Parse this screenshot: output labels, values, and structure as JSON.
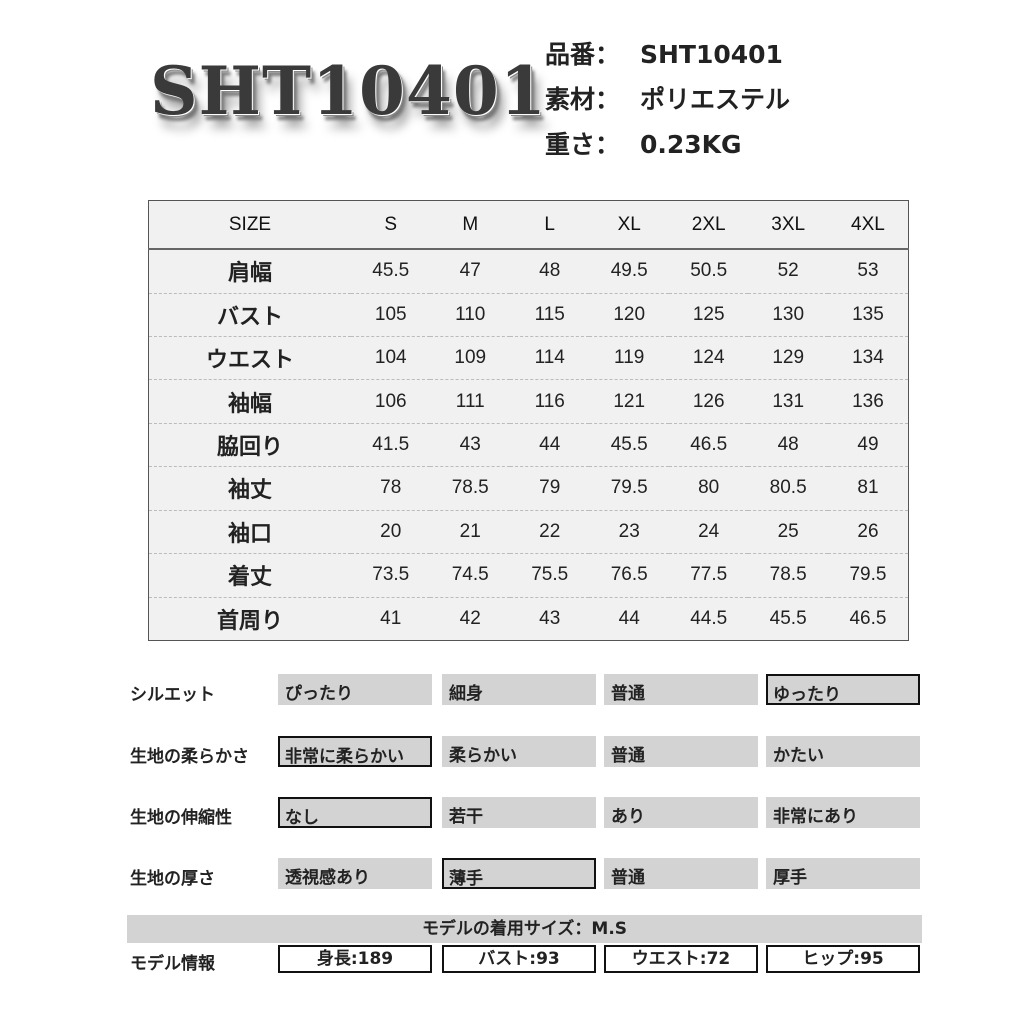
{
  "logo_text": "SHT10401",
  "specs": [
    {
      "key": "品番：",
      "value": "SHT10401"
    },
    {
      "key": "素材：",
      "value": "ポリエステル"
    },
    {
      "key": "重さ：",
      "value": "0.23KG"
    }
  ],
  "size_table": {
    "headers": [
      "SIZE",
      "S",
      "M",
      "L",
      "XL",
      "2XL",
      "3XL",
      "4XL"
    ],
    "rows": [
      {
        "label": "肩幅",
        "values": [
          "45.5",
          "47",
          "48",
          "49.5",
          "50.5",
          "52",
          "53"
        ]
      },
      {
        "label": "バスト",
        "values": [
          "105",
          "110",
          "115",
          "120",
          "125",
          "130",
          "135"
        ]
      },
      {
        "label": "ウエスト",
        "values": [
          "104",
          "109",
          "114",
          "119",
          "124",
          "129",
          "134"
        ]
      },
      {
        "label": "袖幅",
        "values": [
          "106",
          "111",
          "116",
          "121",
          "126",
          "131",
          "136"
        ]
      },
      {
        "label": "脇回り",
        "values": [
          "41.5",
          "43",
          "44",
          "45.5",
          "46.5",
          "48",
          "49"
        ]
      },
      {
        "label": "袖丈",
        "values": [
          "78",
          "78.5",
          "79",
          "79.5",
          "80",
          "80.5",
          "81"
        ]
      },
      {
        "label": "袖口",
        "values": [
          "20",
          "21",
          "22",
          "23",
          "24",
          "25",
          "26"
        ]
      },
      {
        "label": "着丈",
        "values": [
          "73.5",
          "74.5",
          "75.5",
          "76.5",
          "77.5",
          "78.5",
          "79.5"
        ]
      },
      {
        "label": "首周り",
        "values": [
          "41",
          "42",
          "43",
          "44",
          "44.5",
          "45.5",
          "46.5"
        ]
      }
    ]
  },
  "ratings": [
    {
      "label": "シルエット",
      "options": [
        "ぴったり",
        "細身",
        "普通",
        "ゆったり"
      ],
      "selected": 3
    },
    {
      "label": "生地の柔らかさ",
      "options": [
        "非常に柔らかい",
        "柔らかい",
        "普通",
        "かたい"
      ],
      "selected": 0
    },
    {
      "label": "生地の伸縮性",
      "options": [
        "なし",
        "若干",
        "あり",
        "非常にあり"
      ],
      "selected": 0
    },
    {
      "label": "生地の厚さ",
      "options": [
        "透視感あり",
        "薄手",
        "普通",
        "厚手"
      ],
      "selected": 1
    }
  ],
  "model": {
    "size_banner": "モデルの着用サイズ：M.S",
    "label": "モデル情報",
    "stats": [
      "身長:189",
      "バスト:93",
      "ウエスト:72",
      "ヒップ:95"
    ]
  }
}
